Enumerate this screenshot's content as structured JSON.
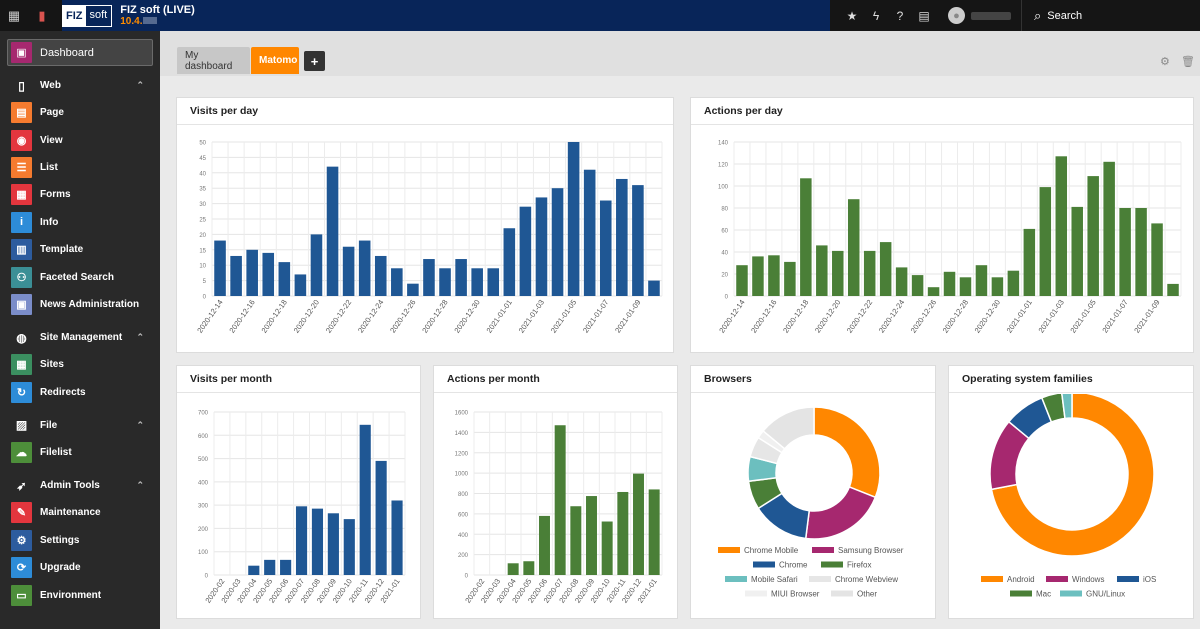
{
  "topbar": {
    "site_title": "FIZ soft (LIVE)",
    "site_version": "10.4.",
    "logo_left": "FIZ",
    "logo_right": "soft",
    "search_label": "Search"
  },
  "sidebar": {
    "dashboard": "Dashboard",
    "sections": [
      {
        "label": "Web",
        "icon": "page-icon",
        "items": [
          {
            "label": "Page",
            "color": "#f57b2f",
            "icon": "page-module-icon",
            "glyph": "▤"
          },
          {
            "label": "View",
            "color": "#e3363e",
            "icon": "eye-icon",
            "glyph": "◉"
          },
          {
            "label": "List",
            "color": "#f57b2f",
            "icon": "list-icon",
            "glyph": "☰"
          },
          {
            "label": "Forms",
            "color": "#e3363e",
            "icon": "forms-icon",
            "glyph": "▦"
          },
          {
            "label": "Info",
            "color": "#2d8cd8",
            "icon": "info-icon",
            "glyph": "i"
          },
          {
            "label": "Template",
            "color": "#2d5c9e",
            "icon": "template-icon",
            "glyph": "▥"
          },
          {
            "label": "Faceted Search",
            "color": "#3b8f96",
            "icon": "binoculars-icon",
            "glyph": "⚇"
          },
          {
            "label": "News Administration",
            "color": "#7b8dc9",
            "icon": "news-icon",
            "glyph": "▣"
          }
        ]
      },
      {
        "label": "Site Management",
        "icon": "globe-icon",
        "items": [
          {
            "label": "Sites",
            "color": "#3b8f60",
            "icon": "sites-icon",
            "glyph": "▦"
          },
          {
            "label": "Redirects",
            "color": "#2d8cd8",
            "icon": "redirect-icon",
            "glyph": "↻"
          }
        ]
      },
      {
        "label": "File",
        "icon": "image-icon",
        "items": [
          {
            "label": "Filelist",
            "color": "#4d8e3a",
            "icon": "cloud-icon",
            "glyph": "☁"
          }
        ]
      },
      {
        "label": "Admin Tools",
        "icon": "rocket-icon",
        "items": [
          {
            "label": "Maintenance",
            "color": "#e3363e",
            "icon": "wrench-icon",
            "glyph": "✎"
          },
          {
            "label": "Settings",
            "color": "#2d5c9e",
            "icon": "gear-icon",
            "glyph": "⚙"
          },
          {
            "label": "Upgrade",
            "color": "#2d8cd8",
            "icon": "upgrade-icon",
            "glyph": "⟳"
          },
          {
            "label": "Environment",
            "color": "#4d8e3a",
            "icon": "environment-icon",
            "glyph": "▭"
          }
        ]
      }
    ]
  },
  "tabs": {
    "my_dashboard": "My dashboard",
    "matomo": "Matomo"
  },
  "colors": {
    "blue": "#1f5794",
    "green": "#4a7f37"
  },
  "chart_data": [
    {
      "id": "visits-per-day",
      "type": "bar",
      "title": "Visits per day",
      "color": "#1f5794",
      "categories": [
        "2020-12-14",
        "2020-12-15",
        "2020-12-16",
        "2020-12-17",
        "2020-12-18",
        "2020-12-19",
        "2020-12-20",
        "2020-12-21",
        "2020-12-22",
        "2020-12-23",
        "2020-12-24",
        "2020-12-25",
        "2020-12-26",
        "2020-12-27",
        "2020-12-28",
        "2020-12-29",
        "2020-12-30",
        "2020-12-31",
        "2021-01-01",
        "2021-01-02",
        "2021-01-03",
        "2021-01-04",
        "2021-01-05",
        "2021-01-06",
        "2021-01-07",
        "2021-01-08",
        "2021-01-09",
        "2021-01-10"
      ],
      "tick_labels": [
        "2020-12-14",
        "2020-12-16",
        "2020-12-18",
        "2020-12-20",
        "2020-12-22",
        "2020-12-24",
        "2020-12-26",
        "2020-12-28",
        "2020-12-30",
        "2021-01-01",
        "2021-01-03",
        "2021-01-05",
        "2021-01-07",
        "2021-01-09"
      ],
      "values": [
        18,
        13,
        15,
        14,
        11,
        7,
        20,
        42,
        16,
        18,
        13,
        9,
        4,
        12,
        9,
        12,
        9,
        9,
        22,
        29,
        32,
        35,
        50,
        41,
        31,
        38,
        36,
        5
      ],
      "ylim": [
        0,
        50
      ],
      "yticks": [
        0,
        5,
        10,
        15,
        20,
        25,
        30,
        35,
        40,
        45,
        50
      ]
    },
    {
      "id": "actions-per-day",
      "type": "bar",
      "title": "Actions per day",
      "color": "#4a7f37",
      "categories": [
        "2020-12-14",
        "2020-12-15",
        "2020-12-16",
        "2020-12-17",
        "2020-12-18",
        "2020-12-19",
        "2020-12-20",
        "2020-12-21",
        "2020-12-22",
        "2020-12-23",
        "2020-12-24",
        "2020-12-25",
        "2020-12-26",
        "2020-12-27",
        "2020-12-28",
        "2020-12-29",
        "2020-12-30",
        "2020-12-31",
        "2021-01-01",
        "2021-01-02",
        "2021-01-03",
        "2021-01-04",
        "2021-01-05",
        "2021-01-06",
        "2021-01-07",
        "2021-01-08",
        "2021-01-09",
        "2021-01-10"
      ],
      "tick_labels": [
        "2020-12-14",
        "2020-12-16",
        "2020-12-18",
        "2020-12-20",
        "2020-12-22",
        "2020-12-24",
        "2020-12-26",
        "2020-12-28",
        "2020-12-30",
        "2021-01-01",
        "2021-01-03",
        "2021-01-05",
        "2021-01-07",
        "2021-01-09"
      ],
      "values": [
        28,
        36,
        37,
        31,
        107,
        46,
        41,
        88,
        41,
        49,
        26,
        19,
        8,
        22,
        17,
        28,
        17,
        23,
        61,
        99,
        127,
        81,
        109,
        122,
        80,
        80,
        66,
        11
      ],
      "ylim": [
        0,
        140
      ],
      "yticks": [
        0,
        20,
        40,
        60,
        80,
        100,
        120,
        140
      ]
    },
    {
      "id": "visits-per-month",
      "type": "bar",
      "title": "Visits per month",
      "color": "#1f5794",
      "categories": [
        "2020-02",
        "2020-03",
        "2020-04",
        "2020-05",
        "2020-06",
        "2020-07",
        "2020-08",
        "2020-09",
        "2020-10",
        "2020-11",
        "2020-12",
        "2021-01"
      ],
      "values": [
        0,
        0,
        40,
        65,
        65,
        295,
        285,
        265,
        240,
        645,
        490,
        320
      ],
      "ylim": [
        0,
        700
      ],
      "yticks": [
        0,
        100,
        200,
        300,
        400,
        500,
        600,
        700
      ]
    },
    {
      "id": "actions-per-month",
      "type": "bar",
      "title": "Actions per month",
      "color": "#4a7f37",
      "categories": [
        "2020-02",
        "2020-03",
        "2020-04",
        "2020-05",
        "2020-06",
        "2020-07",
        "2020-08",
        "2020-09",
        "2020-10",
        "2020-11",
        "2020-12",
        "2021-01"
      ],
      "values": [
        0,
        0,
        115,
        135,
        580,
        1470,
        675,
        775,
        525,
        815,
        995,
        840
      ],
      "ylim": [
        0,
        1600
      ],
      "yticks": [
        0,
        200,
        400,
        600,
        800,
        1000,
        1200,
        1400,
        1600
      ]
    },
    {
      "id": "browsers",
      "type": "pie",
      "title": "Browsers",
      "slices": [
        {
          "label": "Chrome Mobile",
          "value": 31,
          "color": "#ff8700"
        },
        {
          "label": "Samsung Browser",
          "value": 21,
          "color": "#a6286f"
        },
        {
          "label": "Chrome",
          "value": 14,
          "color": "#1f5794"
        },
        {
          "label": "Firefox",
          "value": 7,
          "color": "#4a7f37"
        },
        {
          "label": "Mobile Safari",
          "value": 6,
          "color": "#6cbfbf"
        },
        {
          "label": "Chrome Webview",
          "value": 5,
          "color": "#e6e6e6"
        },
        {
          "label": "MIUI Browser",
          "value": 2,
          "color": "#f0f0f0"
        },
        {
          "label": "Other",
          "value": 14,
          "color": "#e4e4e4"
        }
      ]
    },
    {
      "id": "os-families",
      "type": "pie",
      "title": "Operating system families",
      "slices": [
        {
          "label": "Android",
          "value": 72,
          "color": "#ff8700"
        },
        {
          "label": "Windows",
          "value": 14,
          "color": "#a6286f"
        },
        {
          "label": "iOS",
          "value": 8,
          "color": "#1f5794"
        },
        {
          "label": "Mac",
          "value": 4,
          "color": "#4a7f37"
        },
        {
          "label": "GNU/Linux",
          "value": 2,
          "color": "#6cbfbf"
        }
      ]
    }
  ]
}
